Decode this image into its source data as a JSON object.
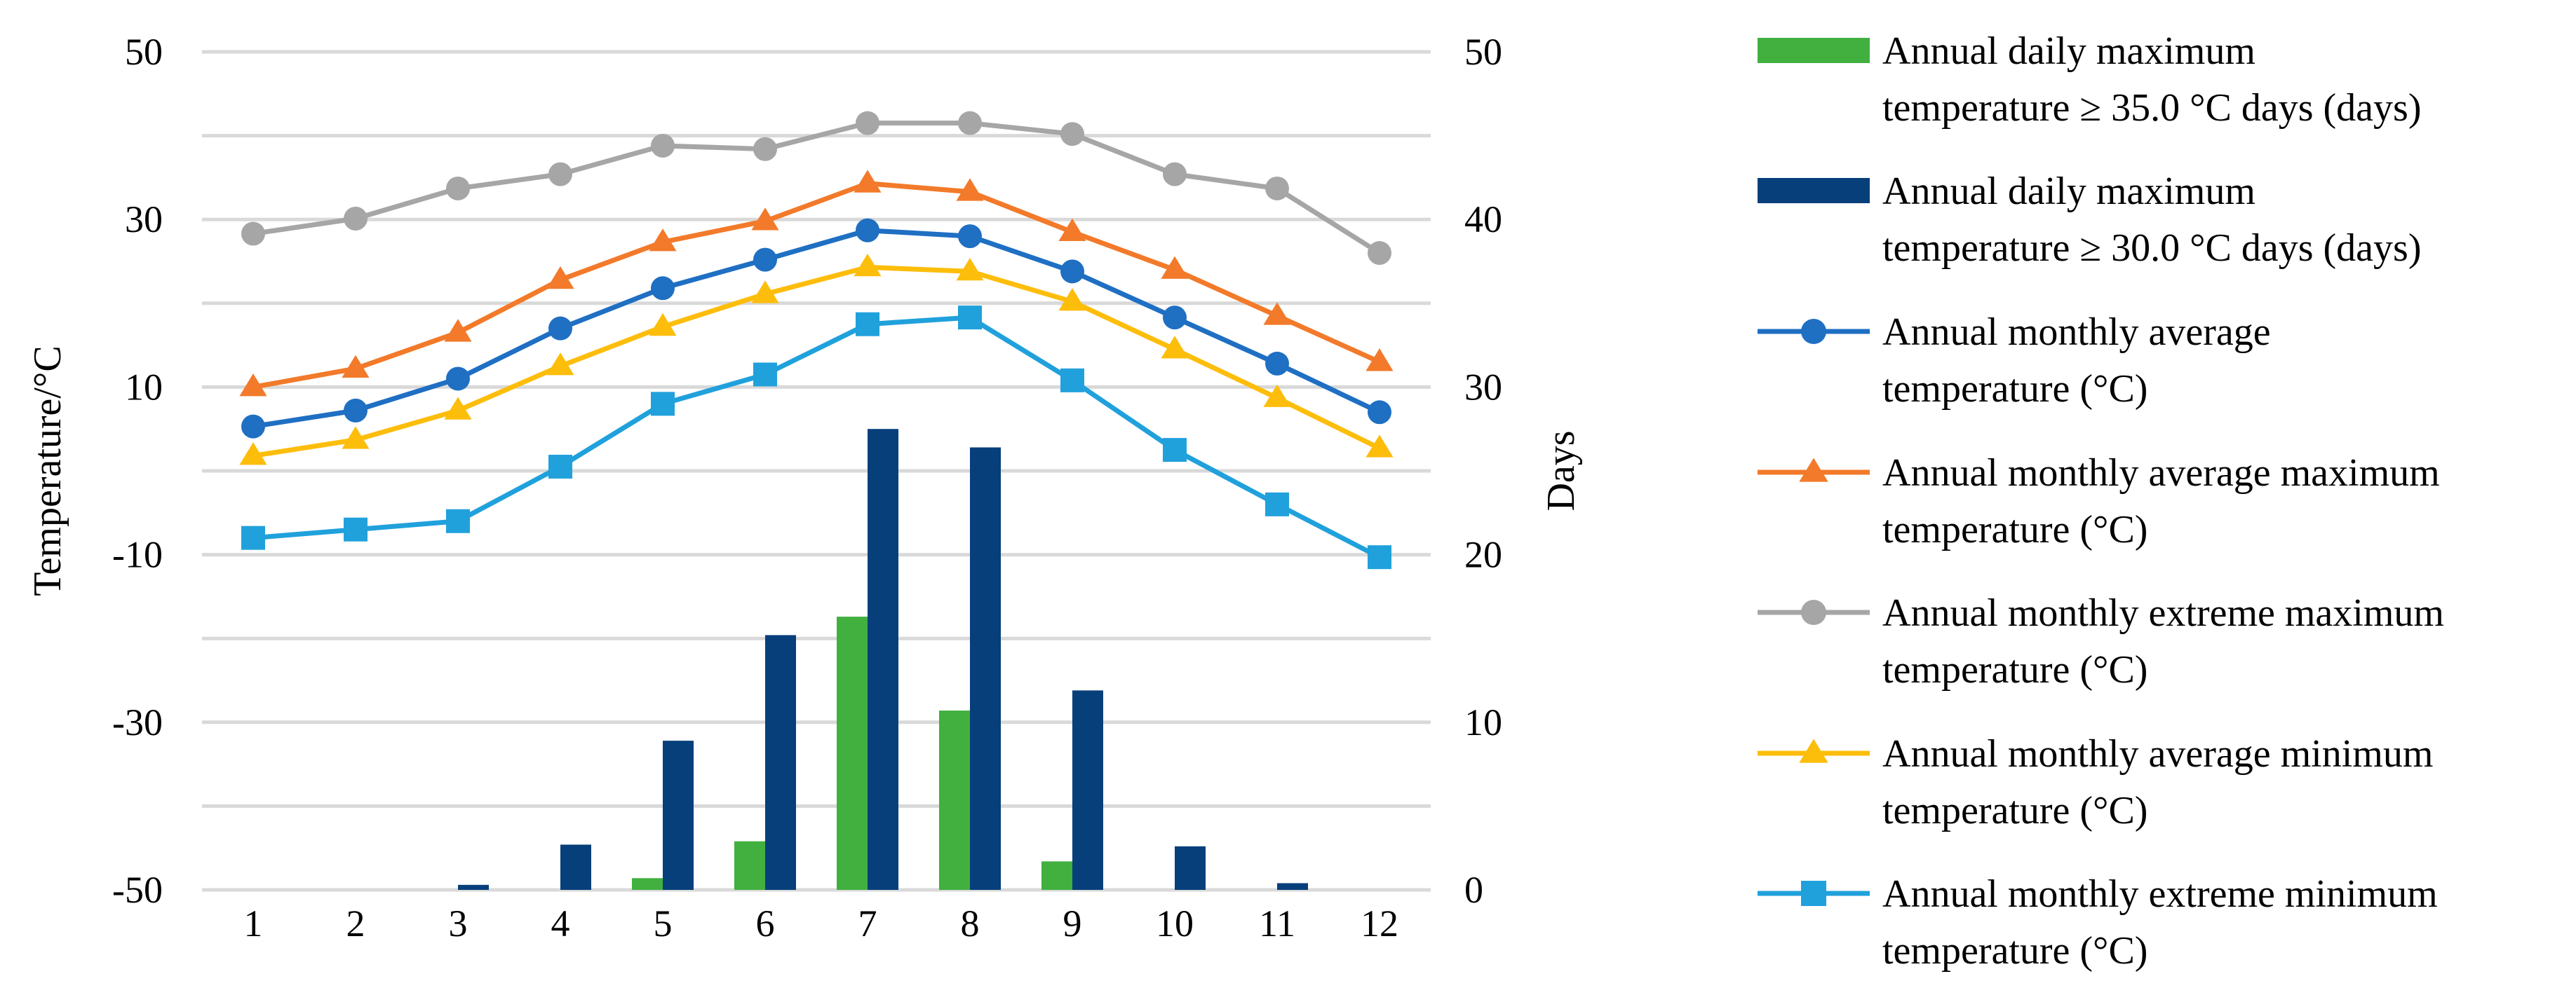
{
  "chart_data": {
    "type": "bar+line",
    "categories": [
      "1",
      "2",
      "3",
      "4",
      "5",
      "6",
      "7",
      "8",
      "9",
      "10",
      "11",
      "12"
    ],
    "y_left": {
      "label": "Temperature/°C",
      "range": [
        -50,
        50
      ],
      "ticks": [
        "50",
        "30",
        "10",
        "-10",
        "-30",
        "-50"
      ]
    },
    "y_right": {
      "label": "Days",
      "range": [
        0,
        50
      ],
      "ticks": [
        "50",
        "40",
        "30",
        "20",
        "10",
        "0"
      ]
    },
    "gridlines": true,
    "bar_series": [
      {
        "name": "Annual daily maximum temperature ≥ 35.0 °C days (days)",
        "legend_lines": [
          "Annual daily maximum",
          "temperature ≥ 35.0 °C days (days)"
        ],
        "color": "#41b03f",
        "axis": "right",
        "values": [
          0,
          0,
          0,
          0,
          0.7,
          2.9,
          16.3,
          10.7,
          1.7,
          0,
          0,
          0
        ]
      },
      {
        "name": "Annual daily maximum temperature ≥ 30.0 °C days (days)",
        "legend_lines": [
          "Annual daily maximum",
          "temperature ≥ 30.0 °C days (days)"
        ],
        "color": "#073f7a",
        "axis": "right",
        "values": [
          0,
          0,
          0.3,
          2.7,
          8.9,
          15.2,
          27.5,
          26.4,
          11.9,
          2.6,
          0.4,
          0
        ]
      }
    ],
    "line_series": [
      {
        "name": "Annual monthly average temperature (°C)",
        "legend_lines": [
          "Annual monthly average",
          "temperature (°C)"
        ],
        "color": "#1f6fc3",
        "marker": "circle",
        "axis": "left",
        "values": [
          5.3,
          7.2,
          11.0,
          17.0,
          21.8,
          25.2,
          28.7,
          28.0,
          23.8,
          18.3,
          12.8,
          7.0
        ]
      },
      {
        "name": "Annual monthly average maximum temperature (°C)",
        "legend_lines": [
          "Annual monthly average maximum",
          "temperature (°C)"
        ],
        "color": "#f27a2a",
        "marker": "triangle",
        "axis": "left",
        "values": [
          10.0,
          12.2,
          16.5,
          22.8,
          27.3,
          29.8,
          34.3,
          33.3,
          28.5,
          24.0,
          18.5,
          13.0
        ]
      },
      {
        "name": "Annual monthly extreme maximum temperature (°C)",
        "legend_lines": [
          "Annual monthly extreme maximum",
          "temperature (°C)"
        ],
        "color": "#a6a6a6",
        "marker": "circle",
        "axis": "left",
        "values": [
          28.3,
          30.1,
          33.7,
          35.4,
          38.8,
          38.4,
          41.5,
          41.5,
          40.2,
          35.4,
          33.7,
          26.0
        ]
      },
      {
        "name": "Annual monthly average minimum temperature (°C)",
        "legend_lines": [
          "Annual monthly average minimum",
          "temperature (°C)"
        ],
        "color": "#fdbd0b",
        "marker": "triangle",
        "axis": "left",
        "values": [
          1.8,
          3.7,
          7.2,
          12.5,
          17.2,
          21.1,
          24.3,
          23.8,
          20.2,
          14.5,
          8.7,
          2.7
        ]
      },
      {
        "name": "Annual monthly extreme minimum temperature (°C)",
        "legend_lines": [
          "Annual monthly extreme minimum",
          "temperature (°C)"
        ],
        "color": "#20a1dc",
        "marker": "square",
        "axis": "left",
        "values": [
          -8.0,
          -7.0,
          -6.0,
          0.5,
          8.0,
          11.5,
          17.5,
          18.3,
          10.8,
          2.5,
          -4.0,
          -10.3
        ]
      }
    ],
    "legend_position": "right"
  }
}
